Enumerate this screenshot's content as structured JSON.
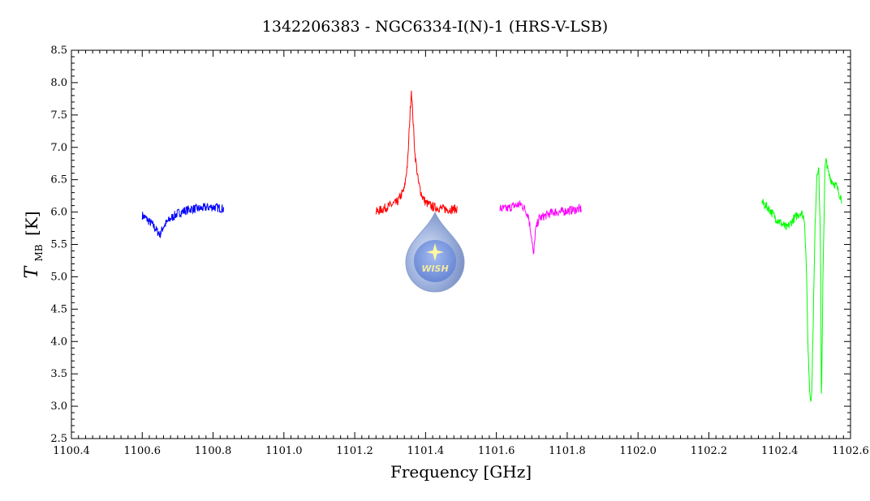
{
  "chart_data": {
    "type": "line",
    "title": "1342206383 - NGC6334-I(N)-1 (HRS-V-LSB)",
    "xlabel": "Frequency [GHz]",
    "ylabel_main": "T",
    "ylabel_sub": "MB",
    "ylabel_unit": "[K]",
    "xlim": [
      1100.4,
      1102.6
    ],
    "ylim": [
      2.5,
      8.5
    ],
    "x_ticks": [
      "1100.4",
      "1100.6",
      "1100.8",
      "1101.0",
      "1101.2",
      "1101.4",
      "1101.6",
      "1101.8",
      "1102.0",
      "1102.2",
      "1102.4",
      "1102.6"
    ],
    "x_tick_values": [
      1100.4,
      1100.6,
      1100.8,
      1101.0,
      1101.2,
      1101.4,
      1101.6,
      1101.8,
      1102.0,
      1102.2,
      1102.4,
      1102.6
    ],
    "y_ticks": [
      "2.5",
      "3.0",
      "3.5",
      "4.0",
      "4.5",
      "5.0",
      "5.5",
      "6.0",
      "6.5",
      "7.0",
      "7.5",
      "8.0",
      "8.5"
    ],
    "y_tick_values": [
      2.5,
      3.0,
      3.5,
      4.0,
      4.5,
      5.0,
      5.5,
      6.0,
      6.5,
      7.0,
      7.5,
      8.0,
      8.5
    ],
    "grid": false,
    "series": [
      {
        "color": "#0000ff",
        "x": [
          1100.6,
          1100.615,
          1100.63,
          1100.64,
          1100.65,
          1100.66,
          1100.68,
          1100.7,
          1100.72,
          1100.74,
          1100.76,
          1100.78,
          1100.8,
          1100.83
        ],
        "y": [
          5.95,
          5.88,
          5.8,
          5.72,
          5.65,
          5.78,
          5.9,
          5.98,
          6.02,
          6.05,
          6.05,
          6.07,
          6.08,
          6.05
        ]
      },
      {
        "color": "#ff0000",
        "x": [
          1101.26,
          1101.28,
          1101.3,
          1101.32,
          1101.34,
          1101.35,
          1101.355,
          1101.36,
          1101.365,
          1101.37,
          1101.38,
          1101.39,
          1101.4,
          1101.42,
          1101.44,
          1101.46,
          1101.49
        ],
        "y": [
          6.0,
          6.05,
          6.1,
          6.15,
          6.35,
          6.8,
          7.4,
          7.9,
          7.4,
          6.9,
          6.45,
          6.25,
          6.15,
          6.08,
          6.06,
          6.04,
          6.05
        ]
      },
      {
        "color": "#ff00ff",
        "x": [
          1101.61,
          1101.63,
          1101.65,
          1101.67,
          1101.68,
          1101.69,
          1101.7,
          1101.705,
          1101.71,
          1101.72,
          1101.74,
          1101.76,
          1101.78,
          1101.8,
          1101.84
        ],
        "y": [
          6.05,
          6.05,
          6.1,
          6.12,
          6.05,
          5.95,
          5.6,
          5.3,
          5.7,
          5.9,
          5.95,
          6.0,
          6.0,
          6.02,
          6.05
        ]
      },
      {
        "color": "#00ff00",
        "x": [
          1102.35,
          1102.37,
          1102.39,
          1102.41,
          1102.42,
          1102.44,
          1102.46,
          1102.47,
          1102.475,
          1102.48,
          1102.485,
          1102.49,
          1102.495,
          1102.5,
          1102.505,
          1102.51,
          1102.515,
          1102.518,
          1102.522,
          1102.528,
          1102.532,
          1102.537,
          1102.545,
          1102.56,
          1102.575
        ],
        "y": [
          6.15,
          6.05,
          5.9,
          5.8,
          5.75,
          5.9,
          6.0,
          5.9,
          5.2,
          3.9,
          3.2,
          3.1,
          4.4,
          5.8,
          6.6,
          6.7,
          5.6,
          2.9,
          5.0,
          6.7,
          6.8,
          6.6,
          6.5,
          6.4,
          6.2
        ]
      }
    ]
  },
  "logo": {
    "text": "WISH"
  }
}
